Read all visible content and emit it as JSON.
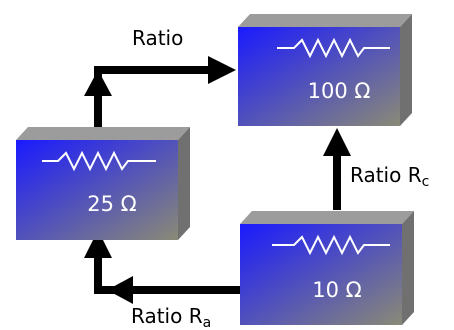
{
  "boxes": {
    "top": {
      "value": "100 Ω"
    },
    "left": {
      "value": "25 Ω"
    },
    "right": {
      "value": "10 Ω"
    }
  },
  "arrows": {
    "top": {
      "label": "Ratio"
    },
    "right": {
      "label": "Ratio R",
      "sub": "c"
    },
    "bottom": {
      "label": "Ratio R",
      "sub": "a"
    }
  },
  "colors": {
    "box_front_start": "#1a1aff",
    "box_front_end": "#8a8a76",
    "box_top": "#9c9c9c",
    "box_side": "#707070",
    "arrow": "#000000",
    "resistor_line": "#ffffff"
  },
  "icons": {
    "resistor": "resistor-zigzag-icon",
    "arrow": "arrow-head-icon"
  }
}
